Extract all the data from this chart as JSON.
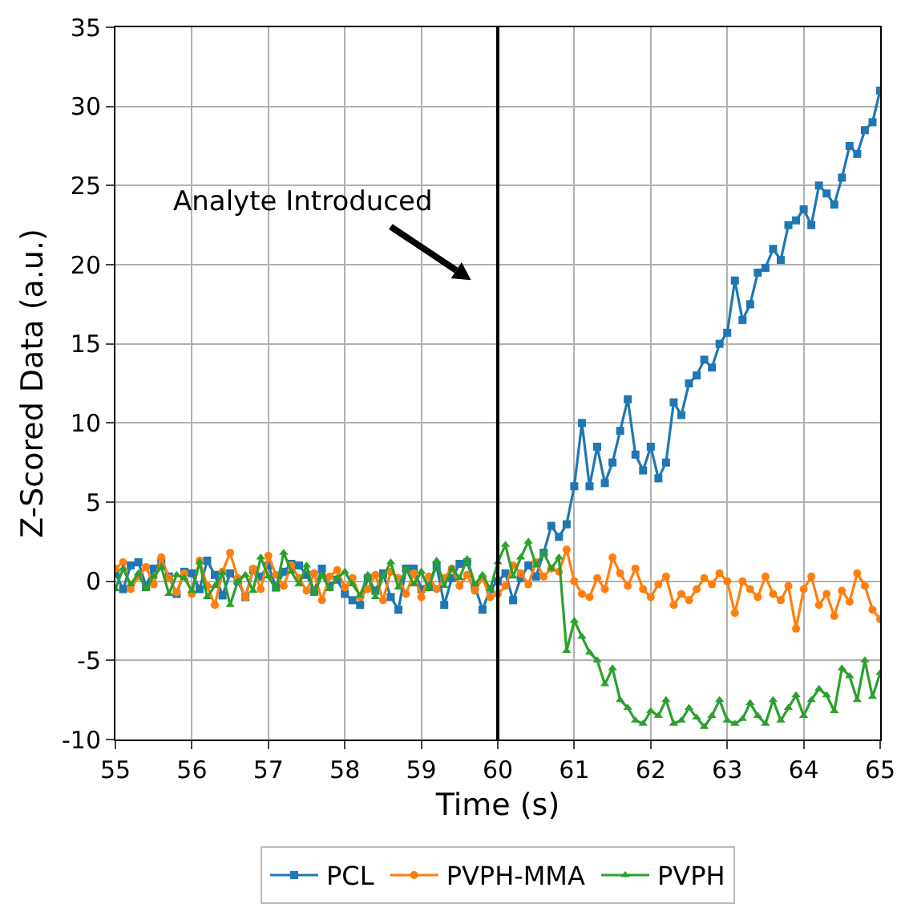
{
  "chart_data": {
    "type": "line",
    "xlabel": "Time (s)",
    "ylabel": "Z-Scored Data (a.u.)",
    "x": [
      55,
      55.1,
      55.2,
      55.3,
      55.4,
      55.5,
      55.6,
      55.7,
      55.8,
      55.9,
      56,
      56.1,
      56.2,
      56.3,
      56.4,
      56.5,
      56.6,
      56.7,
      56.8,
      56.9,
      57,
      57.1,
      57.2,
      57.3,
      57.4,
      57.5,
      57.6,
      57.7,
      57.8,
      57.9,
      58,
      58.1,
      58.2,
      58.3,
      58.4,
      58.5,
      58.6,
      58.7,
      58.8,
      58.9,
      59,
      59.1,
      59.2,
      59.3,
      59.4,
      59.5,
      59.6,
      59.7,
      59.8,
      59.9,
      60,
      60.1,
      60.2,
      60.3,
      60.4,
      60.5,
      60.6,
      60.7,
      60.8,
      60.9,
      61,
      61.1,
      61.2,
      61.3,
      61.4,
      61.5,
      61.6,
      61.7,
      61.8,
      61.9,
      62,
      62.1,
      62.2,
      62.3,
      62.4,
      62.5,
      62.6,
      62.7,
      62.8,
      62.9,
      63,
      63.1,
      63.2,
      63.3,
      63.4,
      63.5,
      63.6,
      63.7,
      63.8,
      63.9,
      64,
      64.1,
      64.2,
      64.3,
      64.4,
      64.5,
      64.6,
      64.7,
      64.8,
      64.9,
      65
    ],
    "series": [
      {
        "name": "PCL",
        "color": "#1f77b4",
        "marker": "square",
        "values": [
          0.5,
          -0.5,
          1.0,
          1.2,
          -0.3,
          0.8,
          1.2,
          0.3,
          -0.8,
          0.6,
          0.5,
          -0.5,
          1.3,
          0.4,
          -0.9,
          0.5,
          0.0,
          -1.0,
          0.7,
          0.3,
          1.0,
          -0.4,
          0.6,
          1.1,
          1.0,
          0.4,
          -0.6,
          0.8,
          -0.3,
          0.1,
          -0.8,
          -1.2,
          -1.5,
          0.2,
          -0.6,
          0.5,
          -1.0,
          -1.8,
          0.8,
          0.8,
          -0.5,
          -0.3,
          1.0,
          -1.5,
          0.2,
          1.1,
          1.2,
          -0.3,
          -1.8,
          -0.5,
          0.0,
          0.5,
          -1.2,
          0.2,
          1.0,
          0.3,
          1.8,
          3.5,
          2.8,
          3.6,
          6.0,
          10.0,
          6.0,
          8.5,
          6.2,
          7.5,
          9.5,
          11.5,
          8.0,
          7.0,
          8.5,
          6.5,
          7.5,
          11.3,
          10.5,
          12.5,
          13.0,
          14.0,
          13.5,
          15.0,
          15.7,
          19.0,
          16.5,
          17.5,
          19.5,
          19.8,
          21.0,
          20.3,
          22.5,
          22.8,
          23.5,
          22.5,
          25.0,
          24.5,
          23.8,
          25.5,
          27.5,
          27.0,
          28.5,
          29.0,
          31.0
        ]
      },
      {
        "name": "PVPH-MMA",
        "color": "#ff7f0e",
        "marker": "circle",
        "values": [
          0.8,
          1.2,
          -0.5,
          0.3,
          0.9,
          -0.2,
          1.5,
          0.2,
          -0.7,
          0.5,
          -0.8,
          1.3,
          -0.3,
          -1.5,
          0.6,
          1.8,
          0.2,
          -1.0,
          0.8,
          -0.5,
          1.6,
          0.4,
          -0.3,
          1.0,
          0.2,
          -0.6,
          0.5,
          -1.2,
          0.3,
          0.7,
          -0.4,
          0.2,
          -1.0,
          -0.5,
          0.4,
          -1.2,
          0.6,
          0.2,
          -0.8,
          0.5,
          -1.0,
          0.3,
          -0.5,
          0.2,
          0.8,
          -0.3,
          0.4,
          -0.6,
          0.2,
          -1.0,
          -0.8,
          -0.3,
          1.0,
          0.5,
          -0.2,
          1.2,
          0.3,
          0.8,
          0.6,
          2.0,
          0.0,
          -0.8,
          -1.0,
          0.2,
          -0.5,
          1.5,
          0.5,
          -0.3,
          0.8,
          -0.5,
          -1.0,
          -0.2,
          0.3,
          -1.5,
          -0.8,
          -1.2,
          -0.5,
          0.2,
          -0.2,
          0.5,
          0.0,
          -2.0,
          0.0,
          -0.5,
          -1.0,
          0.3,
          -0.8,
          -1.2,
          -0.3,
          -3.0,
          -0.5,
          0.3,
          -1.5,
          -0.8,
          -2.2,
          -0.6,
          -1.3,
          0.5,
          -0.3,
          -1.8,
          -2.4
        ]
      },
      {
        "name": "PVPH",
        "color": "#2ca02c",
        "marker": "triangle",
        "values": [
          -0.5,
          0.8,
          -0.2,
          0.5,
          -0.5,
          0.3,
          0.9,
          -0.8,
          0.4,
          0.2,
          -0.6,
          1.2,
          -1.0,
          -0.3,
          0.5,
          -1.5,
          0.0,
          0.4,
          -0.6,
          1.5,
          0.3,
          -0.5,
          1.8,
          0.6,
          -0.2,
          1.0,
          -0.8,
          0.4,
          -0.5,
          0.2,
          0.6,
          -0.2,
          -0.9,
          0.4,
          -1.0,
          0.3,
          1.2,
          -0.4,
          0.8,
          -0.2,
          0.6,
          -0.5,
          1.3,
          -0.3,
          0.8,
          0.2,
          1.4,
          -0.2,
          0.4,
          -0.5,
          1.2,
          2.3,
          0.3,
          1.5,
          2.5,
          1.0,
          1.8,
          0.8,
          1.5,
          -4.4,
          -2.5,
          -3.5,
          -4.5,
          -5.0,
          -6.5,
          -5.5,
          -7.5,
          -8.0,
          -8.8,
          -9.0,
          -8.2,
          -8.5,
          -7.5,
          -9.0,
          -8.8,
          -8.0,
          -8.6,
          -9.2,
          -8.5,
          -7.5,
          -8.8,
          -9.0,
          -8.7,
          -7.7,
          -8.5,
          -9.0,
          -7.5,
          -8.8,
          -8.0,
          -7.2,
          -8.5,
          -7.5,
          -6.8,
          -7.2,
          -8.2,
          -5.5,
          -6.0,
          -7.5,
          -5.0,
          -7.3,
          -5.8
        ]
      }
    ],
    "xlim": [
      55,
      65
    ],
    "xticks": [
      55,
      56,
      57,
      58,
      59,
      60,
      61,
      62,
      63,
      64,
      65
    ],
    "ylim": [
      -10,
      35
    ],
    "yticks": [
      -10,
      -5,
      0,
      5,
      10,
      15,
      20,
      25,
      30,
      35
    ],
    "grid": true,
    "legend": "bottom",
    "line_style": "solid",
    "ref_lines": [
      {
        "axis": "x",
        "value": 60,
        "color": "#000000"
      }
    ],
    "annotations": [
      "Analyte Introduced"
    ]
  }
}
